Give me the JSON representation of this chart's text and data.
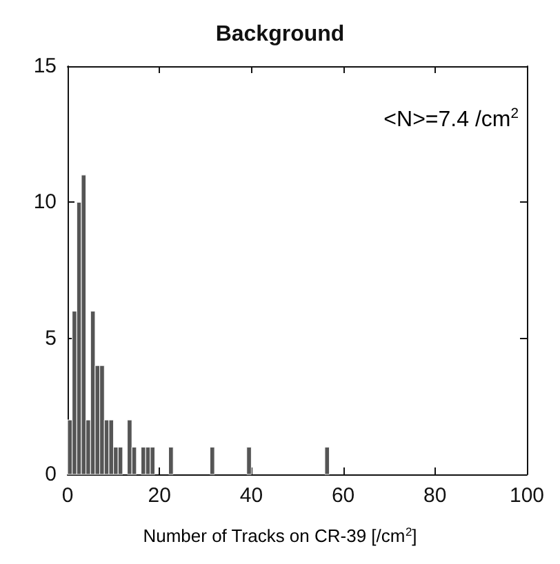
{
  "chart_data": {
    "type": "histogram",
    "title": "Background",
    "xlabel": "Number of Tracks on CR-39 [/cm$^{2}$]",
    "annotations": [
      "<N>=7.4 /cm$^{2}$"
    ],
    "bins": [
      0,
      1,
      2,
      3,
      4,
      5,
      6,
      7,
      8,
      9,
      10,
      11,
      12,
      13,
      14,
      15,
      16,
      17,
      18,
      19,
      20,
      21,
      22,
      23,
      24,
      25,
      26,
      27,
      28,
      29,
      30,
      31,
      32,
      33,
      34,
      35,
      36,
      37,
      38,
      39,
      40,
      41,
      42,
      43,
      44,
      45,
      46,
      47,
      48,
      49,
      50,
      51,
      52,
      53,
      54,
      55,
      56,
      57
    ],
    "values": [
      2,
      6,
      10,
      11,
      2,
      6,
      4,
      4,
      2,
      2,
      1,
      1,
      0,
      2,
      1,
      0,
      1,
      1,
      1,
      0,
      0,
      0,
      1,
      0,
      0,
      0,
      0,
      0,
      0,
      0,
      0,
      1,
      0,
      0,
      0,
      0,
      0,
      0,
      0,
      1,
      0,
      0,
      0,
      0,
      0,
      0,
      0,
      0,
      0,
      0,
      0,
      0,
      0,
      0,
      0,
      0,
      1
    ],
    "color": "#555555",
    "xlim": [
      0,
      100
    ],
    "xticks": [
      0,
      20,
      40,
      60,
      80,
      100
    ],
    "ylim": [
      0,
      15
    ],
    "yticks": [
      0,
      5,
      10,
      15
    ],
    "grid": false
  }
}
